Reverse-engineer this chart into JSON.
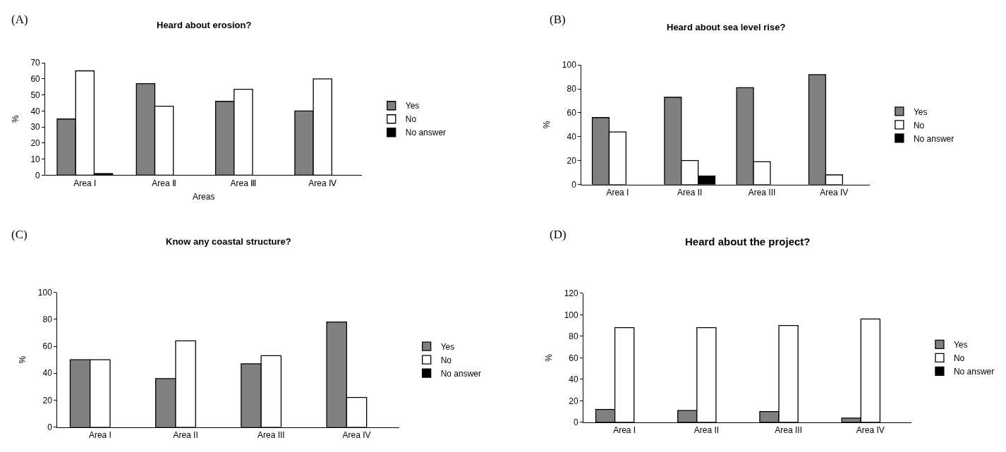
{
  "chart_data": [
    {
      "type": "bar",
      "title": "Heard about erosion?",
      "xlabel": "Areas",
      "ylabel": "%",
      "annotations": [
        "(A)"
      ],
      "categories": [
        "Area I",
        "Area Ⅱ",
        "Area Ⅲ",
        "Area Ⅳ"
      ],
      "ylim": [
        0,
        70
      ],
      "yticks": [
        0,
        10,
        20,
        30,
        40,
        50,
        60,
        70
      ],
      "legend": "right",
      "series": [
        {
          "name": "Yes",
          "color": "#808080",
          "values": [
            35,
            57,
            46,
            40
          ]
        },
        {
          "name": "No",
          "color": "#ffffff",
          "values": [
            65,
            43,
            53.5,
            60
          ]
        },
        {
          "name": "No answer",
          "color": "#000000",
          "values": [
            1,
            null,
            null,
            null
          ]
        }
      ]
    },
    {
      "type": "bar",
      "title": "Heard about sea level rise?",
      "ylabel": "%",
      "annotations": [
        "(B)"
      ],
      "categories": [
        "Area I",
        "Area II",
        "Area III",
        "Area IV"
      ],
      "ylim": [
        0,
        100
      ],
      "yticks": [
        0,
        20,
        40,
        60,
        80,
        100
      ],
      "legend": "right",
      "series": [
        {
          "name": "Yes",
          "color": "#808080",
          "values": [
            56,
            73,
            81,
            92
          ]
        },
        {
          "name": "No",
          "color": "#ffffff",
          "values": [
            44,
            20,
            19,
            8
          ]
        },
        {
          "name": "No answer",
          "color": "#000000",
          "values": [
            null,
            7,
            null,
            null
          ]
        }
      ]
    },
    {
      "type": "bar",
      "title": "Know any coastal structure?",
      "ylabel": "%",
      "annotations": [
        "(C)"
      ],
      "categories": [
        "Area I",
        "Area II",
        "Area III",
        "Area IV"
      ],
      "ylim": [
        0,
        100
      ],
      "yticks": [
        0,
        20,
        40,
        60,
        80,
        100
      ],
      "legend": "right",
      "series": [
        {
          "name": "Yes",
          "color": "#808080",
          "values": [
            50,
            36,
            47,
            78
          ]
        },
        {
          "name": "No",
          "color": "#ffffff",
          "values": [
            50,
            64,
            53,
            22
          ]
        },
        {
          "name": "No answer",
          "color": "#000000",
          "values": [
            null,
            null,
            null,
            null
          ]
        }
      ]
    },
    {
      "type": "bar",
      "title": "Heard about the project?",
      "ylabel": "%",
      "annotations": [
        "(D)"
      ],
      "categories": [
        "Area I",
        "Area II",
        "Area III",
        "Area IV"
      ],
      "ylim": [
        0,
        120
      ],
      "yticks": [
        0,
        20,
        40,
        60,
        80,
        100,
        120
      ],
      "legend": "right",
      "series": [
        {
          "name": "Yes",
          "color": "#808080",
          "values": [
            12,
            11,
            10,
            4
          ]
        },
        {
          "name": "No",
          "color": "#ffffff",
          "values": [
            88,
            88,
            90,
            96
          ]
        },
        {
          "name": "No answer",
          "color": "#000000",
          "values": [
            null,
            null,
            null,
            null
          ]
        }
      ]
    }
  ]
}
